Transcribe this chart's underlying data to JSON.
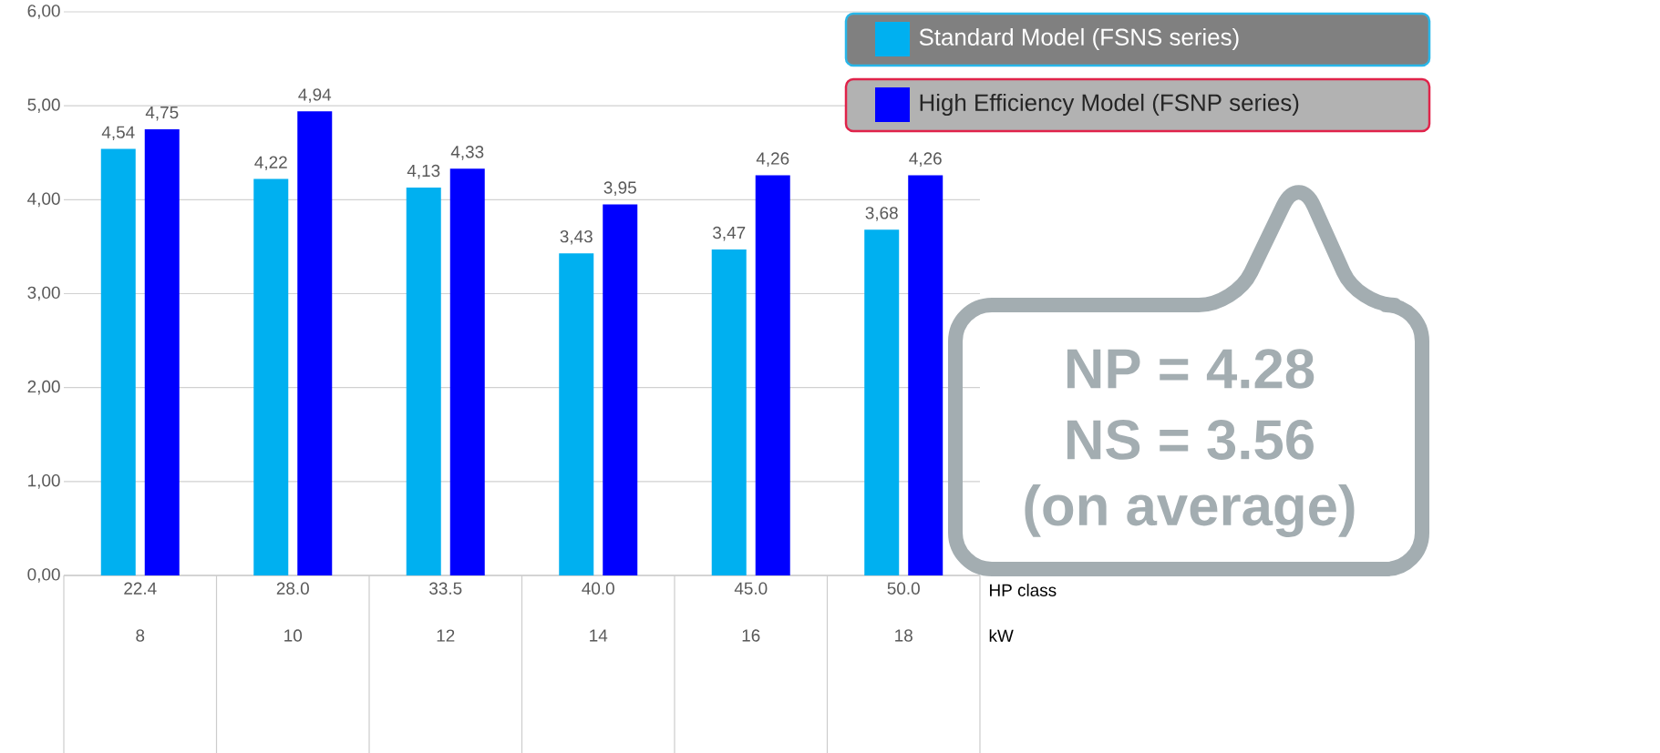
{
  "chart_data": {
    "type": "bar",
    "categories": [
      "22.4",
      "28.0",
      "33.5",
      "40.0",
      "45.0",
      "50.0"
    ],
    "series": [
      {
        "name": "Standard Model (FSNS series)",
        "color": "#00b0f0",
        "values": [
          4.54,
          4.22,
          4.13,
          3.43,
          3.47,
          3.68
        ],
        "value_labels": [
          "4,54",
          "4,22",
          "4,13",
          "3,43",
          "3,47",
          "3,68"
        ]
      },
      {
        "name": "High Efficiency Model (FSNP series)",
        "color": "#0000ff",
        "values": [
          4.75,
          4.94,
          4.33,
          3.95,
          4.26,
          4.26
        ],
        "value_labels": [
          "4,75",
          "4,94",
          "4,33",
          "3,95",
          "4,26",
          "4,26"
        ]
      }
    ],
    "ylim": [
      0,
      6
    ],
    "yticks": [
      {
        "value": 0,
        "label": "0,00"
      },
      {
        "value": 1,
        "label": "1,00"
      },
      {
        "value": 2,
        "label": "2,00"
      },
      {
        "value": 3,
        "label": "3,00"
      },
      {
        "value": 4,
        "label": "4,00"
      },
      {
        "value": 5,
        "label": "5,00"
      },
      {
        "value": 6,
        "label": "6,00"
      }
    ],
    "grid": "y",
    "legend": "top right",
    "annotations": [
      "8",
      "10",
      "12",
      "14",
      "16",
      "18",
      "HP class",
      "kW",
      "NP = 4.28",
      "NS = 3.56",
      "(on average)"
    ]
  }
}
